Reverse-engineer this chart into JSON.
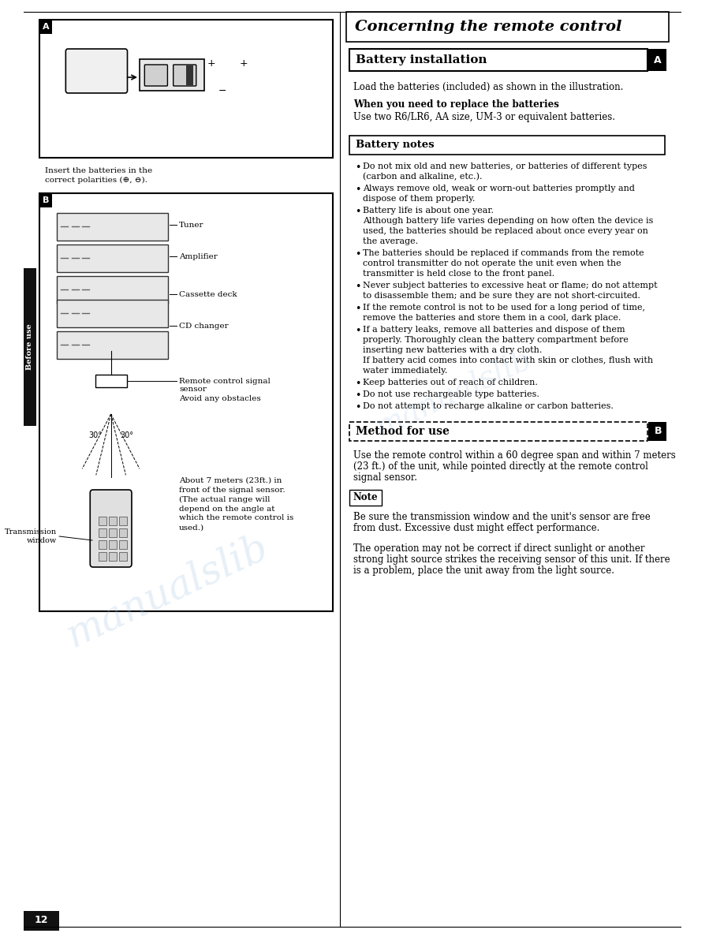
{
  "page_bg": "#ffffff",
  "title_section": "Concerning the remote control",
  "left_panel_bg": "#ffffff",
  "right_panel_bg": "#ffffff",
  "battery_install_header": "Battery installation",
  "battery_install_text1": "Load the batteries (included) as shown in the illustration.",
  "battery_install_bold": "When you need to replace the batteries",
  "battery_install_text2": "Use two R6/LR6, AA size, UM-3 or equivalent batteries.",
  "battery_notes_header": "Battery notes",
  "battery_notes": [
    "Do not mix old and new batteries, or batteries of different types\n(carbon and alkaline, etc.).",
    "Always remove old, weak or worn-out batteries promptly and\ndispose of them properly.",
    "Battery life is about one year.\nAlthough battery life varies depending on how often the device is\nused, the batteries should be replaced about once every year on\nthe average.",
    "The batteries should be replaced if commands from the remote\ncontrol transmitter do not operate the unit even when the\ntransmitter is held close to the front panel.",
    "Never subject batteries to excessive heat or flame; do not attempt\nto disassemble them; and be sure they are not short-circuited.",
    "If the remote control is not to be used for a long period of time,\nremove the batteries and store them in a cool, dark place.",
    "If a battery leaks, remove all batteries and dispose of them\nproperly. Thoroughly clean the battery compartment before\ninserting new batteries with a dry cloth.\nIf battery acid comes into contact with skin or clothes, flush with\nwater immediately.",
    "Keep batteries out of reach of children.",
    "Do not use rechargeable type batteries.",
    "Do not attempt to recharge alkaline or carbon batteries."
  ],
  "method_header": "Method for use",
  "method_text1": "Use the remote control within a 60 degree span and within 7 meters\n(23 ft.) of the unit, while pointed directly at the remote control\nsignal sensor.",
  "note_header": "Note",
  "note_text": "Be sure the transmission window and the unit's sensor are free\nfrom dust. Excessive dust might effect performance.",
  "method_text2": "The operation may not be correct if direct sunlight or another\nstrong light source strikes the receiving sensor of this unit. If there\nis a problem, place the unit away from the light source.",
  "sidebar_label": "Before use",
  "page_number": "12",
  "label_A_left": "A",
  "label_B_left": "B",
  "label_A_right": "A",
  "label_B_right": "B",
  "left_diagram_A_caption": "Insert the batteries in the\ncorrect polarities (⊕, ⊖).",
  "left_diagram_B_labels": [
    "Tuner",
    "Amplifier",
    "Cassette deck",
    "CD changer",
    "Remote control signal\nsensor",
    "Avoid any obstacles",
    "Transmission\nwindow"
  ],
  "left_diagram_B_caption": "About 7 meters (23ft.) in\nfront of the signal sensor.\n(The actual range will\ndepend on the angle at\nwhich the remote control is\nused.)",
  "angle_label": "30°  30°"
}
